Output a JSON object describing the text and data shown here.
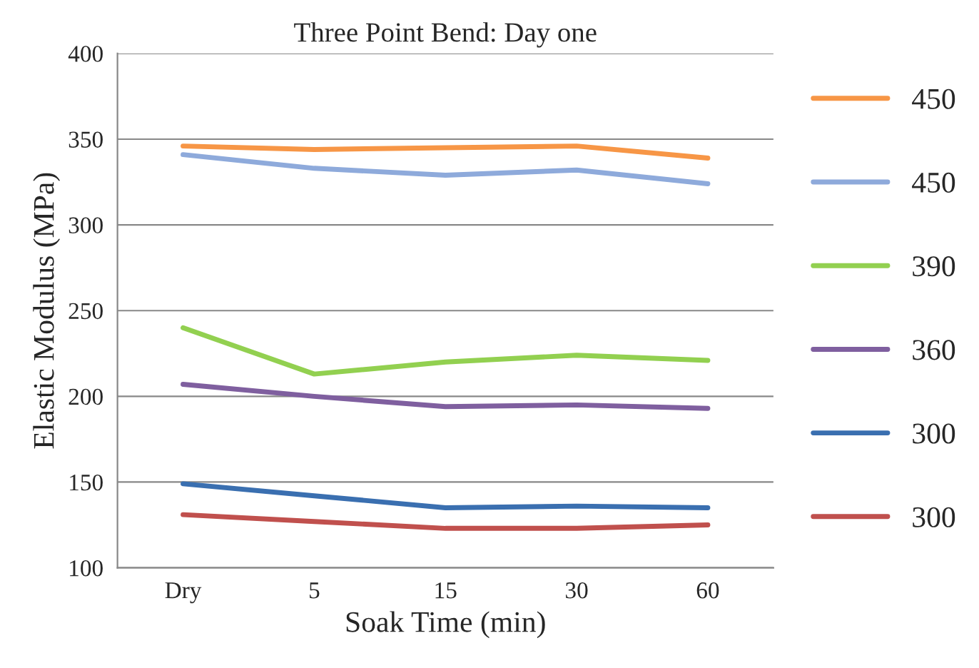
{
  "chart_data": {
    "type": "line",
    "title": "Three Point Bend: Day one",
    "xlabel": "Soak Time (min)",
    "ylabel": "Elastic Modulus (MPa)",
    "categories": [
      "Dry",
      "5",
      "15",
      "30",
      "60"
    ],
    "series": [
      {
        "name": "450",
        "color": "#f79646",
        "values": [
          346,
          344,
          345,
          346,
          339
        ]
      },
      {
        "name": "450",
        "color": "#8eaadb",
        "values": [
          341,
          333,
          329,
          332,
          324
        ]
      },
      {
        "name": "390",
        "color": "#92d050",
        "values": [
          240,
          213,
          220,
          224,
          221
        ]
      },
      {
        "name": "360",
        "color": "#7f5f9f",
        "values": [
          207,
          200,
          194,
          195,
          193
        ]
      },
      {
        "name": "300",
        "color": "#3a6fb0",
        "values": [
          149,
          142,
          135,
          136,
          135
        ]
      },
      {
        "name": "300",
        "color": "#c0504d",
        "values": [
          131,
          127,
          123,
          123,
          125
        ]
      }
    ],
    "ylim": [
      100,
      400
    ],
    "yticks": [
      100,
      150,
      200,
      250,
      300,
      350,
      400
    ],
    "grid": "y",
    "legend": "right",
    "marker": "none",
    "line_style": "solid"
  }
}
